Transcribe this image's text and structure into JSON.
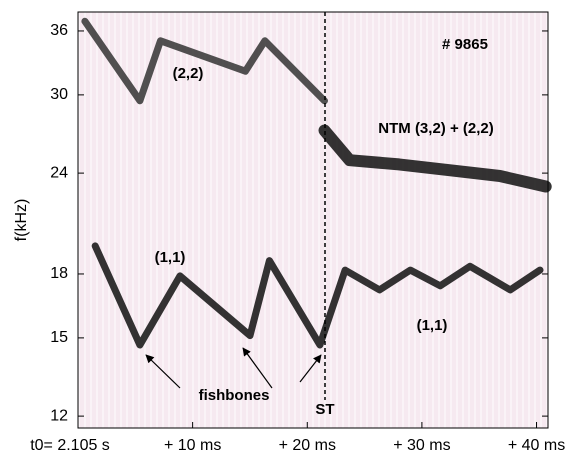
{
  "chart_data": {
    "type": "spectrogram",
    "ylabel": "f(kHz)",
    "yscale": "log",
    "ylim": [
      11.6,
      38
    ],
    "yticks": [
      12,
      15,
      18,
      24,
      30,
      36
    ],
    "xlim": [
      0,
      41
    ],
    "xticks": [
      {
        "value": 0,
        "label": "t0= 2.105 s"
      },
      {
        "value": 10,
        "label": "+ 10 ms"
      },
      {
        "value": 20,
        "label": "+ 20 ms"
      },
      {
        "value": 30,
        "label": "+ 30 ms"
      },
      {
        "value": 40,
        "label": "+ 40 ms"
      }
    ],
    "background": "#f6e9f0",
    "series": [
      {
        "color": "#111111",
        "x": [
          21.5,
          23.7,
          28,
          32.4,
          36.8,
          40.8
        ],
        "values": [
          27.1,
          24.9,
          24.6,
          24.2,
          23.8,
          23.1
        ]
      },
      {
        "color": "#111111",
        "x": [
          1.5,
          5.4,
          8.9,
          15.0,
          16.7,
          21.1,
          23.3,
          26.3,
          29.0,
          31.6,
          34.2,
          37.7,
          40.3
        ],
        "values": [
          19.5,
          14.7,
          17.9,
          15.1,
          18.7,
          14.7,
          18.2,
          17.2,
          18.2,
          17.4,
          18.4,
          17.2,
          18.2
        ]
      },
      {
        "color": "#333333",
        "x": [
          0.6,
          5.4,
          7.2,
          14.6,
          16.3,
          21.5
        ],
        "values": [
          37.0,
          29.5,
          35.0,
          32.1,
          35.0,
          29.5
        ]
      }
    ],
    "annotations": [
      "# 9865",
      "(2,2)",
      "NTM (3,2) + (2,2)",
      "(1,1)",
      "(1,1)",
      "fishbones",
      "ST"
    ]
  }
}
